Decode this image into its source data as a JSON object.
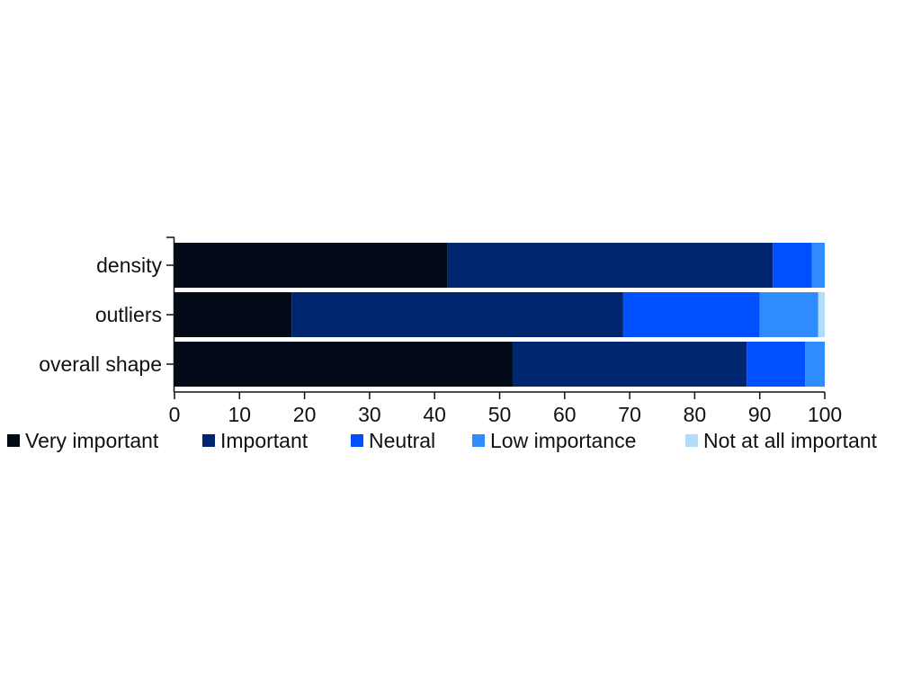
{
  "chart_data": {
    "type": "bar",
    "orientation": "horizontal",
    "stacked": true,
    "title": "",
    "xlabel": "",
    "ylabel": "",
    "xlim": [
      0,
      100
    ],
    "x_ticks": [
      "0",
      "10",
      "20",
      "30",
      "40",
      "50",
      "60",
      "70",
      "80",
      "90",
      "100"
    ],
    "categories": [
      "density",
      "outliers",
      "overall shape"
    ],
    "series": [
      {
        "name": "Very important",
        "color": "#030a17",
        "values": [
          42,
          18,
          52
        ]
      },
      {
        "name": "Important",
        "color": "#00266f",
        "values": [
          50,
          51,
          36
        ]
      },
      {
        "name": "Neutral",
        "color": "#0050ff",
        "values": [
          6,
          21,
          9
        ]
      },
      {
        "name": "Low importance",
        "color": "#2e8cff",
        "values": [
          2,
          9,
          3
        ]
      },
      {
        "name": "Not at all important",
        "color": "#b3dcfa",
        "values": [
          0,
          1,
          0
        ]
      }
    ],
    "legend_position": "bottom",
    "grid": false
  }
}
